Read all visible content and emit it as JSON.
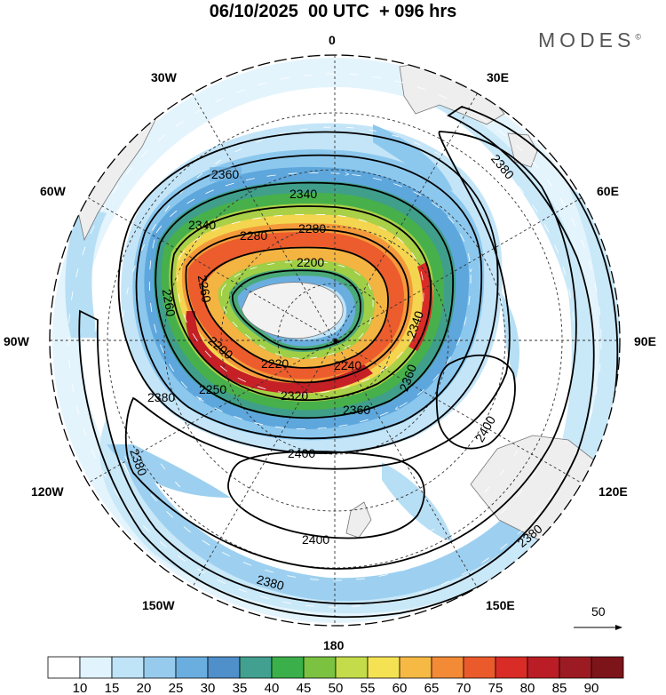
{
  "title": "06/10/2025  00 UTC  + 096 hrs",
  "brand": "MODES",
  "brand_mark": "©",
  "map": {
    "projection": "polar-stereographic-south",
    "longitude_labels": [
      "0",
      "30E",
      "60E",
      "90E",
      "120E",
      "150E",
      "180",
      "150W",
      "120W",
      "90W",
      "60W",
      "30W"
    ],
    "contour_labels": [
      "2200",
      "2220",
      "2240",
      "2250",
      "2260",
      "2280",
      "2320",
      "2340",
      "2360",
      "2380",
      "2400"
    ],
    "vector_reference": "50"
  },
  "colorbar": {
    "ticks": [
      "10",
      "15",
      "20",
      "25",
      "30",
      "35",
      "40",
      "45",
      "50",
      "55",
      "60",
      "65",
      "70",
      "75",
      "80",
      "85",
      "90"
    ],
    "colors": [
      "#ffffff",
      "#e1f3fd",
      "#bfe3f7",
      "#97cbee",
      "#6aaee0",
      "#4f8fca",
      "#41a08f",
      "#3bb04a",
      "#7cc241",
      "#c4dc4a",
      "#f5e253",
      "#f6b944",
      "#f28a36",
      "#eb5a2b",
      "#d92c27",
      "#bb1d26",
      "#9c1b22",
      "#7d141a"
    ]
  }
}
